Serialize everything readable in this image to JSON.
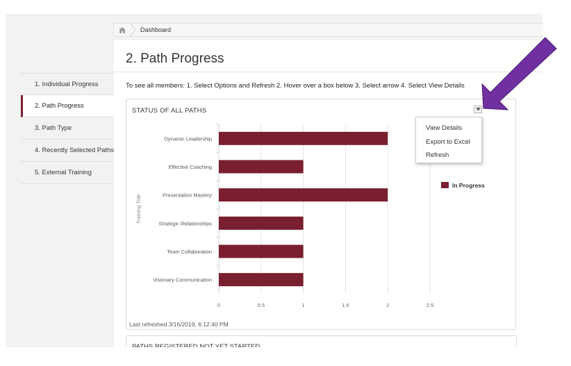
{
  "breadcrumb": {
    "items": [
      "Dashboard"
    ]
  },
  "sidebar": {
    "items": [
      {
        "label": "1. Individual Progress"
      },
      {
        "label": "2. Path Progress"
      },
      {
        "label": "3. Path Type"
      },
      {
        "label": "4. Recently Selected Paths"
      },
      {
        "label": "5. External Training"
      }
    ],
    "active_index": 1
  },
  "main": {
    "title": "2. Path Progress",
    "instructions": "To see all members: 1. Select Options and Refresh 2. Hover over a box below 3. Select arrow 4. Select View Details"
  },
  "panel": {
    "title": "STATUS OF ALL PATHS",
    "last_refreshed": "Last refreshed 3/16/2019, 6:12:40 PM",
    "menu_icon": "triangle-down-icon"
  },
  "dropdown": {
    "options": [
      "View Details",
      "Export to Excel",
      "Refresh"
    ]
  },
  "panel2": {
    "title": "PATHS REGISTERED NOT YET STARTED"
  },
  "colors": {
    "bar": "#7a1f2f",
    "accent": "#7a1f2f",
    "arrow": "#7030a0"
  },
  "chart_data": {
    "type": "bar",
    "orientation": "horizontal",
    "categories": [
      "Dynamic Leadership",
      "Effective Coaching",
      "Presentation Mastery",
      "Strategic Relationships",
      "Team Collaboration",
      "Visionary Communication"
    ],
    "series": [
      {
        "name": "In Progress",
        "values": [
          2,
          1,
          2,
          1,
          1,
          1
        ]
      }
    ],
    "xlabel": "",
    "ylabel": "Training Title",
    "xlim": [
      0,
      2.5
    ],
    "xticks": [
      "0",
      "0.5",
      "1",
      "1.5",
      "2",
      "2.5"
    ],
    "grid": true,
    "legend": "right"
  }
}
